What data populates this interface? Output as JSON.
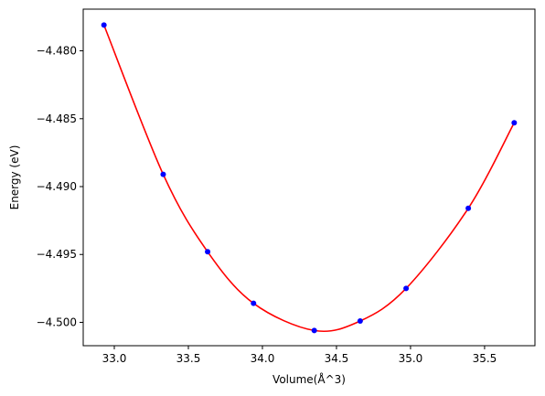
{
  "chart_data": {
    "type": "scatter",
    "title": "",
    "xlabel": "Volume(Å^3)",
    "ylabel": "Energy (eV)",
    "xlim": [
      32.79,
      35.84
    ],
    "ylim": [
      -4.50172,
      -4.47693
    ],
    "x_ticks": [
      33.0,
      33.5,
      34.0,
      34.5,
      35.0,
      35.5
    ],
    "x_tick_labels": [
      "33.0",
      "33.5",
      "34.0",
      "34.5",
      "35.0",
      "35.5"
    ],
    "y_ticks": [
      -4.48,
      -4.485,
      -4.49,
      -4.495,
      -4.5
    ],
    "y_tick_labels": [
      "−4.480",
      "−4.485",
      "−4.490",
      "−4.495",
      "−4.500"
    ],
    "grid": false,
    "series": [
      {
        "kind": "points",
        "color": "#0000ff",
        "x": [
          32.93,
          33.33,
          33.63,
          33.94,
          34.35,
          34.66,
          34.97,
          35.39,
          35.7
        ],
        "y": [
          -4.4781,
          -4.4891,
          -4.4948,
          -4.4986,
          -4.5006,
          -4.4999,
          -4.4975,
          -4.4916,
          -4.4853
        ]
      },
      {
        "kind": "fit-curve",
        "color": "#ff0000",
        "x_range": [
          32.93,
          35.7
        ],
        "minimum": [
          34.45,
          -4.5006
        ]
      }
    ]
  }
}
